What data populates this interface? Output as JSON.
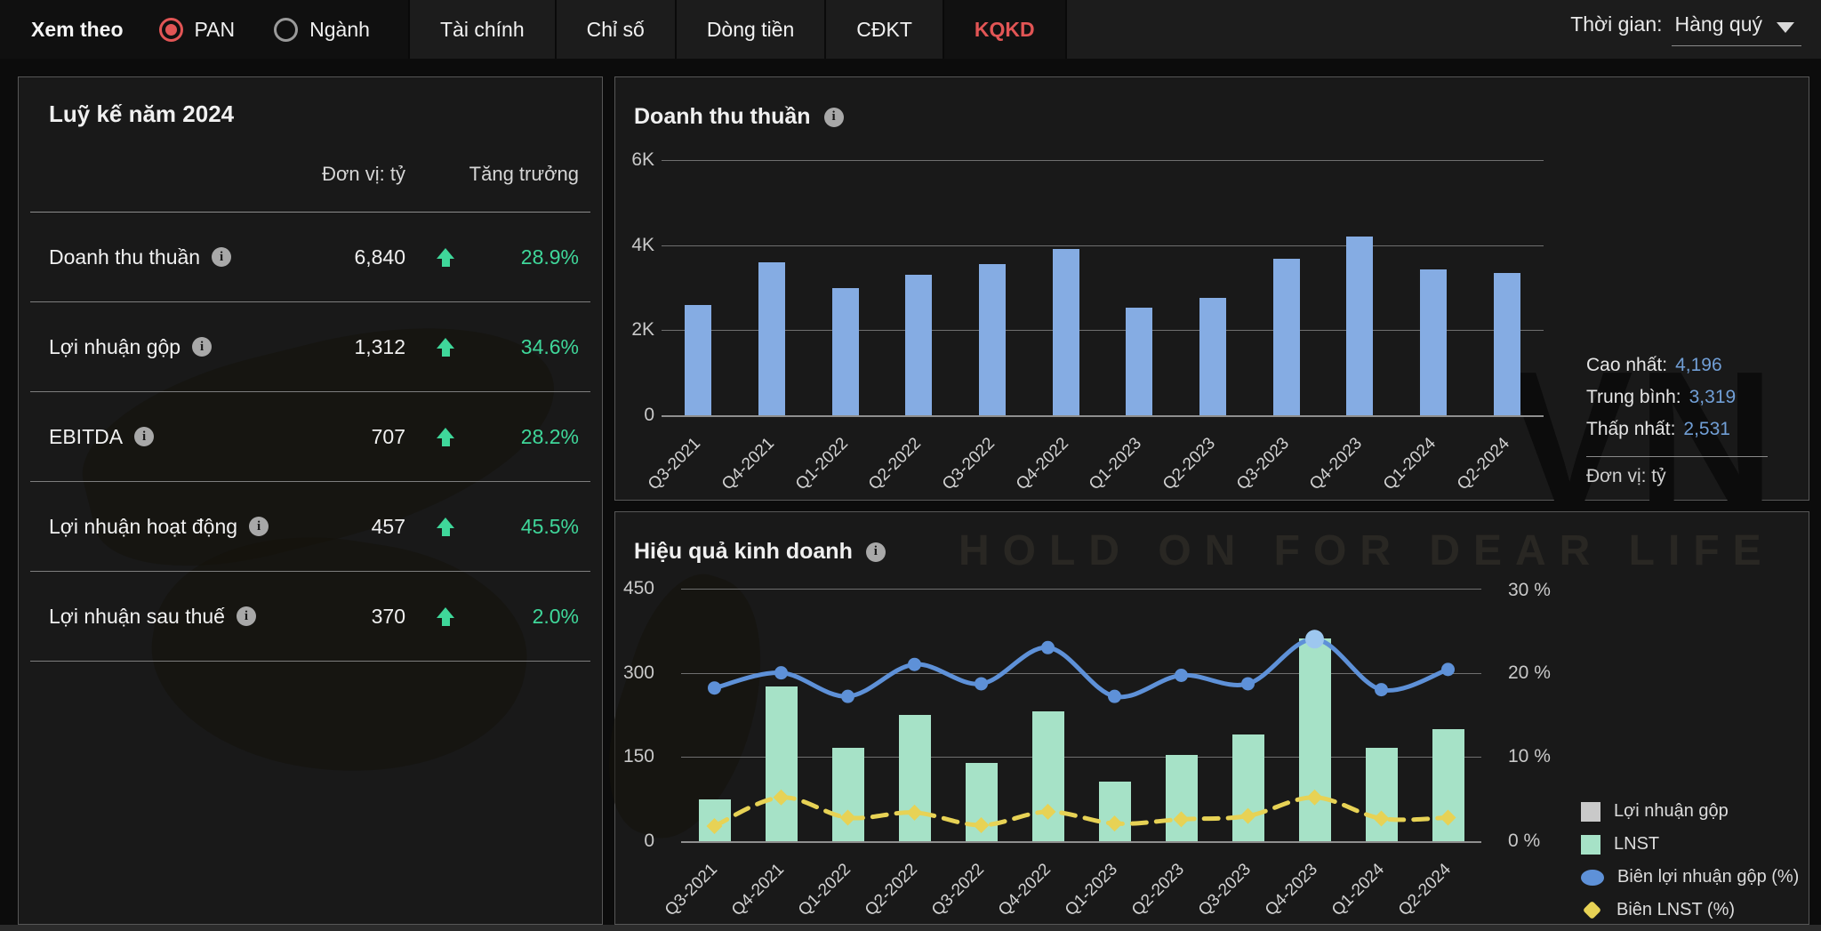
{
  "icons": {
    "info": "i"
  },
  "colors": {
    "accent_red": "#e25555",
    "green": "#3fd79a",
    "stat_blue": "#719fd6",
    "bar_blue": "#85ace3",
    "bar_mint": "#a6e2c7",
    "line_blue": "#5e91d8",
    "line_blue_highlight": "#9dc7ef",
    "line_yellow": "#e7d255"
  },
  "topbar": {
    "view_by_label": "Xem theo",
    "radios": [
      {
        "label": "PAN",
        "selected": true
      },
      {
        "label": "Ngành",
        "selected": false
      }
    ],
    "tabs": [
      {
        "label": "Tài chính",
        "active": false
      },
      {
        "label": "Chỉ số",
        "active": false
      },
      {
        "label": "Dòng tiền",
        "active": false
      },
      {
        "label": "CĐKT",
        "active": false
      },
      {
        "label": "KQKD",
        "active": true
      }
    ],
    "time_label": "Thời gian:",
    "time_value": "Hàng quý"
  },
  "summary_panel": {
    "title": "Luỹ kế năm 2024",
    "unit_header": "Đơn vị: tỷ",
    "growth_header": "Tăng trưởng",
    "rows": [
      {
        "label": "Doanh thu thuần",
        "value": "6,840",
        "growth": "28.9%",
        "direction": "up"
      },
      {
        "label": "Lợi nhuận gộp",
        "value": "1,312",
        "growth": "34.6%",
        "direction": "up"
      },
      {
        "label": "EBITDA",
        "value": "707",
        "growth": "28.2%",
        "direction": "up"
      },
      {
        "label": "Lợi nhuận hoạt động",
        "value": "457",
        "growth": "45.5%",
        "direction": "up"
      },
      {
        "label": "Lợi nhuận sau thuế",
        "value": "370",
        "growth": "2.0%",
        "direction": "up"
      }
    ]
  },
  "chart_data": [
    {
      "type": "bar",
      "title": "Doanh thu thuần",
      "categories": [
        "Q3-2021",
        "Q4-2021",
        "Q1-2022",
        "Q2-2022",
        "Q3-2022",
        "Q4-2022",
        "Q1-2023",
        "Q2-2023",
        "Q3-2023",
        "Q4-2023",
        "Q1-2024",
        "Q2-2024"
      ],
      "values": [
        2595,
        3600,
        3000,
        3300,
        3560,
        3900,
        2531,
        2760,
        3680,
        4196,
        3420,
        3350
      ],
      "ylim": [
        0,
        6000
      ],
      "yticks": [
        "6K",
        "4K",
        "2K",
        "0"
      ],
      "grid": true,
      "bar_color": "#85ace3",
      "stats": {
        "high_label": "Cao nhất:",
        "high_value": "4,196",
        "avg_label": "Trung bình:",
        "avg_value": "3,319",
        "low_label": "Thấp nhất:",
        "low_value": "2,531",
        "unit_note": "Đơn vị: tỷ"
      }
    },
    {
      "type": "combo",
      "title": "Hiệu quả kinh doanh",
      "categories": [
        "Q3-2021",
        "Q4-2021",
        "Q1-2022",
        "Q2-2022",
        "Q3-2022",
        "Q4-2022",
        "Q1-2023",
        "Q2-2023",
        "Q3-2023",
        "Q4-2023",
        "Q1-2024",
        "Q2-2024"
      ],
      "left_axis": {
        "max": 450,
        "ticks": [
          "450",
          "300",
          "150",
          "0"
        ]
      },
      "right_axis": {
        "max": 30,
        "ticks": [
          "30 %",
          "20 %",
          "10 %",
          "0 %"
        ]
      },
      "grid": true,
      "legend_position": "right",
      "series": [
        {
          "name": "Lợi nhuận gộp",
          "type": "bar",
          "color": "#c9c9c9",
          "values": []
        },
        {
          "name": "LNST",
          "type": "bar",
          "color": "#a6e2c7",
          "values": [
            74,
            276,
            167,
            225,
            139,
            232,
            106,
            153,
            190,
            361,
            167,
            200
          ]
        },
        {
          "name": "Biên lợi nhuận gộp (%)",
          "type": "line",
          "axis": "right",
          "color": "#5e91d8",
          "highlight_index": 9,
          "values": [
            18.2,
            20,
            17.2,
            21,
            18.7,
            23,
            17.2,
            19.7,
            18.7,
            24,
            18,
            20.4
          ]
        },
        {
          "name": "Biên LNST (%)",
          "type": "line-dashed",
          "axis": "right",
          "color": "#e7d255",
          "values": [
            1.8,
            5.2,
            2.8,
            3.4,
            1.9,
            3.5,
            2.1,
            2.6,
            3.0,
            5.2,
            2.7,
            2.8
          ]
        }
      ]
    }
  ],
  "watermark": {
    "tagline": "HOLD ON FOR DEAR LIFE",
    "brand": "VN"
  }
}
